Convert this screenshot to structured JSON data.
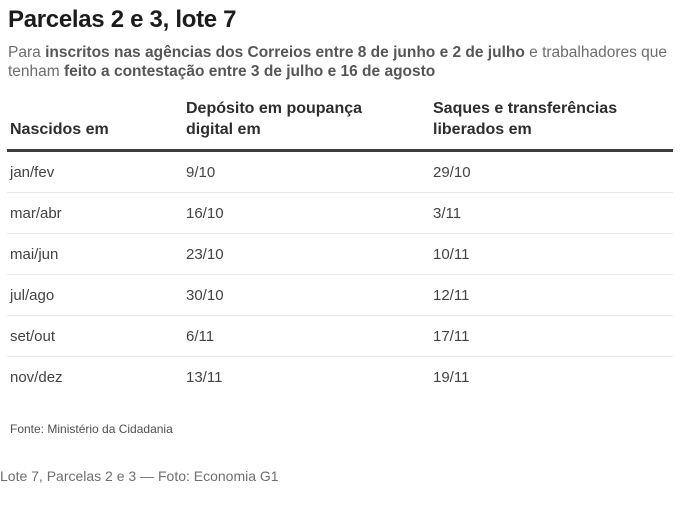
{
  "title": "Parcelas 2 e 3, lote 7",
  "intro": {
    "segments": [
      {
        "text": "Para ",
        "bold": false
      },
      {
        "text": "inscritos nas agências dos Correios entre 8 de junho e 2 de julho",
        "bold": true
      },
      {
        "text": " e trabalhadores que tenham ",
        "bold": false
      },
      {
        "text": "feito a contestação entre 3 de julho e 16 de agosto",
        "bold": true
      }
    ]
  },
  "source": "Fonte: Ministério da Cidadania",
  "caption": "Lote 7, Parcelas 2 e 3 — Foto: Economia G1",
  "colors": {
    "title_text": "#1c1c1c",
    "body_text": "#434343",
    "muted_text": "#6d6d6d",
    "header_rule": "#3d3d3d",
    "row_separator": "#e8e8e8",
    "background": "#ffffff"
  },
  "chart_data": {
    "type": "table",
    "title": "Parcelas 2 e 3, lote 7",
    "columns": [
      "Nascidos em",
      "Depósito em poupança digital em",
      "Saques e transferências liberados em"
    ],
    "rows": [
      [
        "jan/fev",
        "9/10",
        "29/10"
      ],
      [
        "mar/abr",
        "16/10",
        "3/11"
      ],
      [
        "mai/jun",
        "23/10",
        "10/11"
      ],
      [
        "jul/ago",
        "30/10",
        "12/11"
      ],
      [
        "set/out",
        "6/11",
        "17/11"
      ],
      [
        "nov/dez",
        "13/11",
        "19/11"
      ]
    ],
    "notes": "Infographic table: birth-month groups vs. digital savings deposit date and withdrawal/transfer release date"
  }
}
